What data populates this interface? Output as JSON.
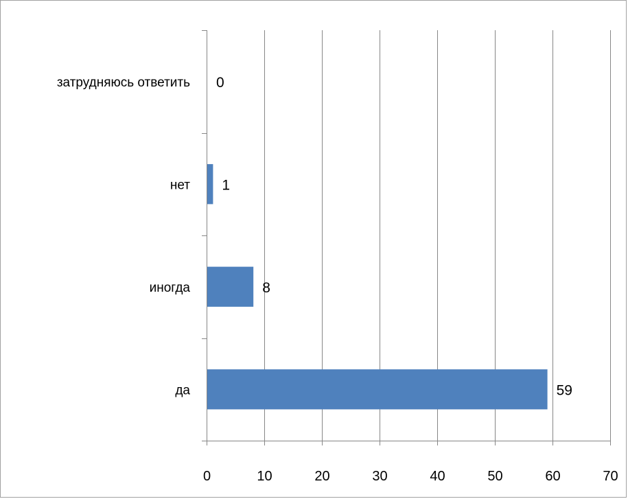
{
  "chart_data": {
    "type": "bar",
    "orientation": "horizontal",
    "categories": [
      "затрудняюсь ответить",
      "нет",
      "иногда",
      "да"
    ],
    "values": [
      0,
      1,
      8,
      59
    ],
    "data_labels": [
      "0",
      "1",
      "8",
      "59"
    ],
    "x_ticks": [
      "0",
      "10",
      "20",
      "30",
      "40",
      "50",
      "60",
      "70"
    ],
    "xlim": [
      0,
      70
    ],
    "grid": "vertical",
    "legend": "none",
    "colors": {
      "bar": "#4f81bd",
      "grid": "#868686",
      "axis": "#868686"
    }
  }
}
